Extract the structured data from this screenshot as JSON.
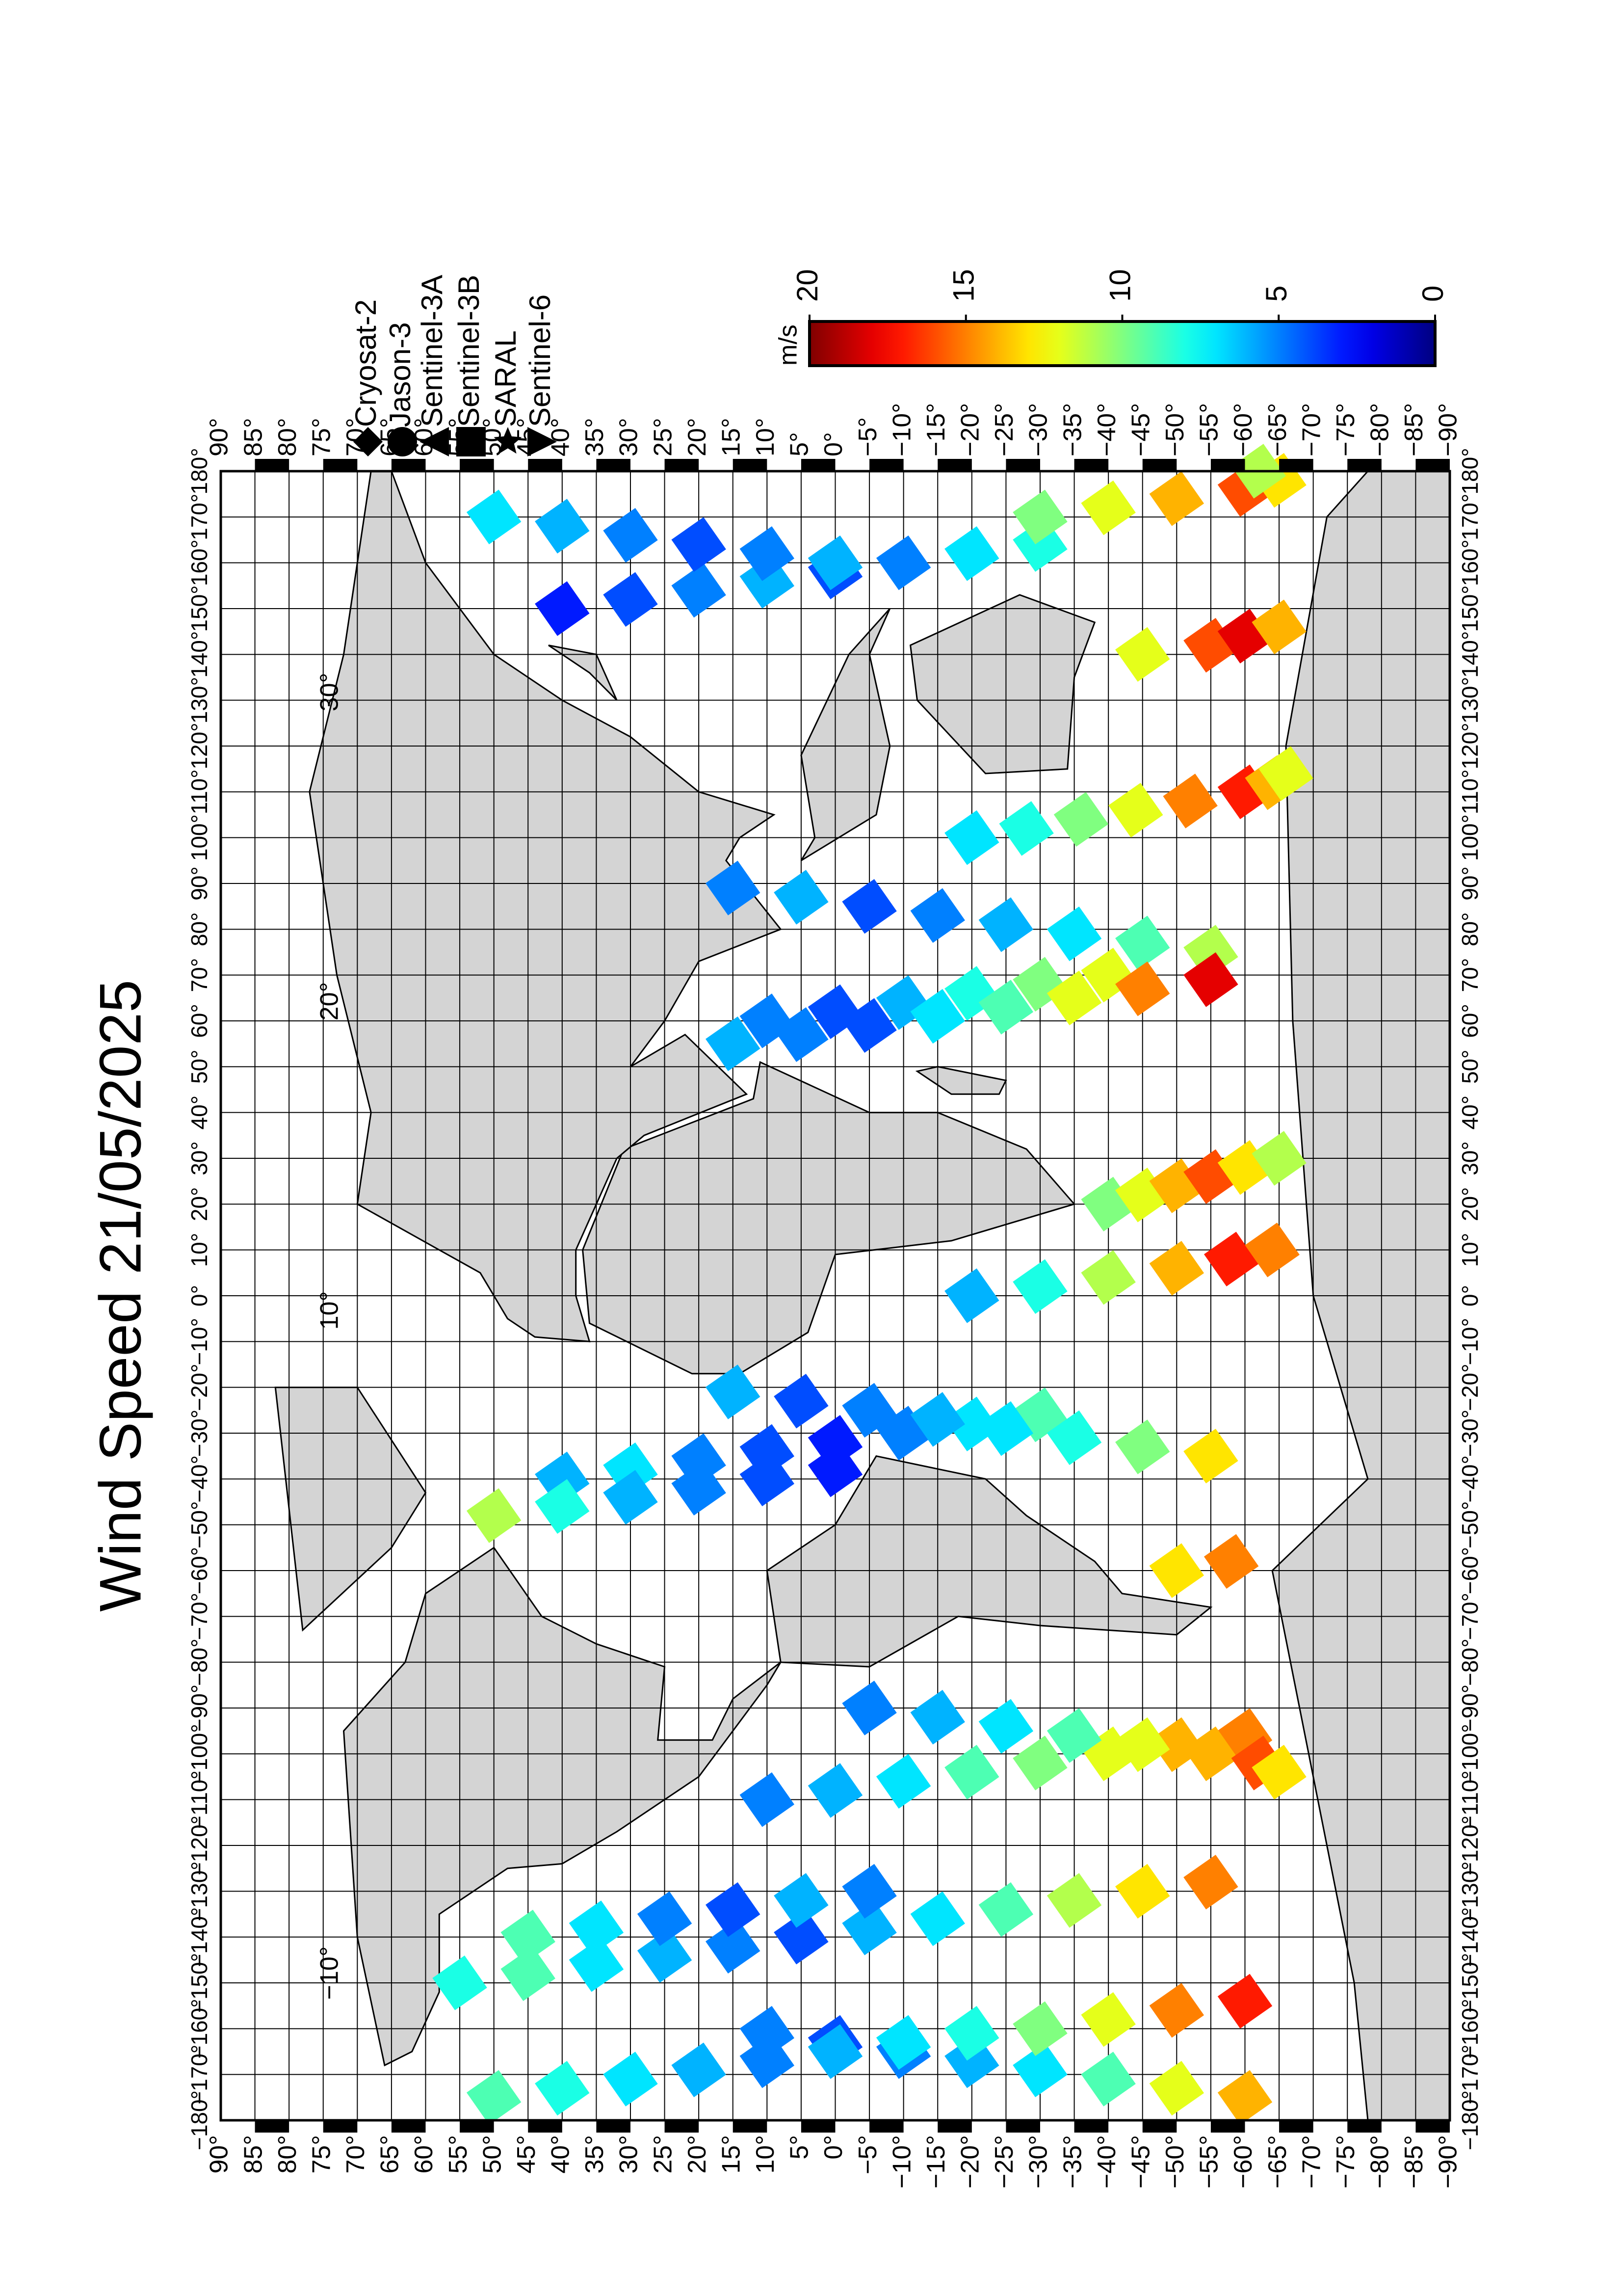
{
  "chart_data": {
    "type": "map",
    "title": "Wind Speed 21/05/2025",
    "xlim": [
      -180,
      180
    ],
    "ylim": [
      -90,
      90
    ],
    "grid": true,
    "xticks": [
      {
        "value": -180,
        "label": "−180°"
      },
      {
        "value": -170,
        "label": "−170°"
      },
      {
        "value": -160,
        "label": "−160°"
      },
      {
        "value": -150,
        "label": "−150°"
      },
      {
        "value": -140,
        "label": "−140°"
      },
      {
        "value": -130,
        "label": "−130°"
      },
      {
        "value": -120,
        "label": "−120°"
      },
      {
        "value": -110,
        "label": "−110°"
      },
      {
        "value": -100,
        "label": "−100°"
      },
      {
        "value": -90,
        "label": "−90°"
      },
      {
        "value": -80,
        "label": "−80°"
      },
      {
        "value": -70,
        "label": "−70°"
      },
      {
        "value": -60,
        "label": "−60°"
      },
      {
        "value": -50,
        "label": "−50°"
      },
      {
        "value": -40,
        "label": "−40°"
      },
      {
        "value": -30,
        "label": "−30°"
      },
      {
        "value": -20,
        "label": "−20°"
      },
      {
        "value": -10,
        "label": "−10°"
      },
      {
        "value": 0,
        "label": "0°"
      },
      {
        "value": 10,
        "label": "10°"
      },
      {
        "value": 20,
        "label": "20°"
      },
      {
        "value": 30,
        "label": "30°"
      },
      {
        "value": 40,
        "label": "40°"
      },
      {
        "value": 50,
        "label": "50°"
      },
      {
        "value": 60,
        "label": "60°"
      },
      {
        "value": 70,
        "label": "70°"
      },
      {
        "value": 80,
        "label": "80°"
      },
      {
        "value": 90,
        "label": "90°"
      },
      {
        "value": 100,
        "label": "100°"
      },
      {
        "value": 110,
        "label": "110°"
      },
      {
        "value": 120,
        "label": "120°"
      },
      {
        "value": 130,
        "label": "130°"
      },
      {
        "value": 140,
        "label": "140°"
      },
      {
        "value": 150,
        "label": "150°"
      },
      {
        "value": 160,
        "label": "160°"
      },
      {
        "value": 170,
        "label": "170°"
      },
      {
        "value": 180,
        "label": "180°"
      }
    ],
    "yticks": [
      {
        "value": -90,
        "label": "−90°"
      },
      {
        "value": -85,
        "label": "−85°"
      },
      {
        "value": -80,
        "label": "−80°"
      },
      {
        "value": -75,
        "label": "−75°"
      },
      {
        "value": -70,
        "label": "−70°"
      },
      {
        "value": -65,
        "label": "−65°"
      },
      {
        "value": -60,
        "label": "−60°"
      },
      {
        "value": -55,
        "label": "−55°"
      },
      {
        "value": -50,
        "label": "−50°"
      },
      {
        "value": -45,
        "label": "−45°"
      },
      {
        "value": -40,
        "label": "−40°"
      },
      {
        "value": -35,
        "label": "−35°"
      },
      {
        "value": -30,
        "label": "−30°"
      },
      {
        "value": -25,
        "label": "−25°"
      },
      {
        "value": -20,
        "label": "−20°"
      },
      {
        "value": -15,
        "label": "−15°"
      },
      {
        "value": -10,
        "label": "−10°"
      },
      {
        "value": -5,
        "label": "−5°"
      },
      {
        "value": 0,
        "label": "0°"
      },
      {
        "value": 5,
        "label": "5°"
      },
      {
        "value": 10,
        "label": "10°"
      },
      {
        "value": 15,
        "label": "15°"
      },
      {
        "value": 20,
        "label": "20°"
      },
      {
        "value": 25,
        "label": "25°"
      },
      {
        "value": 30,
        "label": "30°"
      },
      {
        "value": 35,
        "label": "35°"
      },
      {
        "value": 40,
        "label": "40°"
      },
      {
        "value": 45,
        "label": "45°"
      },
      {
        "value": 50,
        "label": "50°"
      },
      {
        "value": 55,
        "label": "55°"
      },
      {
        "value": 60,
        "label": "60°"
      },
      {
        "value": 65,
        "label": "65°"
      },
      {
        "value": 70,
        "label": "70°"
      },
      {
        "value": 75,
        "label": "75°"
      },
      {
        "value": 80,
        "label": "80°"
      },
      {
        "value": 85,
        "label": "85°"
      },
      {
        "value": 90,
        "label": "90°"
      }
    ],
    "annotations": [
      "−10°",
      "10°",
      "20°",
      "30°"
    ],
    "colorbar": {
      "label": "m/s",
      "lim": [
        0,
        20
      ],
      "ticks": [
        0,
        5,
        10,
        15,
        20
      ]
    },
    "series": [
      {
        "name": "Cryosat-2",
        "marker": "diamond",
        "lon": [
          -150,
          -148,
          -146,
          -144,
          -142,
          -140,
          -138,
          -136,
          -134,
          -132,
          -130,
          -128,
          20,
          22,
          24,
          26,
          28,
          30,
          60,
          62,
          64,
          66,
          68,
          70
        ],
        "lat": [
          55,
          45,
          35,
          25,
          15,
          5,
          -5,
          -15,
          -25,
          -35,
          -45,
          -55,
          -40,
          -45,
          -50,
          -55,
          -60,
          -65,
          10,
          0,
          -10,
          -20,
          -30,
          -40
        ],
        "values": [
          8,
          9,
          7,
          6,
          5,
          4,
          6,
          7,
          9,
          11,
          13,
          15,
          10,
          12,
          14,
          16,
          13,
          11,
          5,
          4,
          6,
          8,
          10,
          12
        ]
      },
      {
        "name": "Jason-3",
        "marker": "circle",
        "lon": [
          -40,
          -38,
          -36,
          -34,
          -32,
          -30,
          -28,
          -26,
          150,
          152,
          154,
          156,
          158,
          160,
          162,
          164,
          -110,
          -108,
          -106,
          -104,
          -102,
          -100,
          -98,
          -96
        ],
        "lat": [
          40,
          30,
          20,
          10,
          0,
          -10,
          -20,
          -30,
          40,
          30,
          20,
          10,
          0,
          -10,
          -20,
          -30,
          10,
          0,
          -10,
          -20,
          -30,
          -40,
          -50,
          -60
        ],
        "values": [
          6,
          7,
          5,
          4,
          3,
          5,
          7,
          9,
          3,
          4,
          5,
          6,
          4,
          5,
          7,
          8,
          5,
          6,
          7,
          9,
          10,
          12,
          14,
          15
        ]
      },
      {
        "name": "Sentinel-3A",
        "marker": "triangle-up",
        "lon": [
          -175,
          -173,
          -171,
          -169,
          -167,
          -165,
          -163,
          -161,
          75,
          77,
          79,
          81,
          83,
          85,
          87,
          89,
          -35,
          -33,
          -31,
          -29,
          -27,
          -25,
          -23,
          -21
        ],
        "lat": [
          -60,
          -50,
          -40,
          -30,
          -20,
          -10,
          0,
          10,
          -55,
          -45,
          -35,
          -25,
          -15,
          -5,
          5,
          15,
          -55,
          -45,
          -35,
          -25,
          -15,
          -5,
          5,
          15
        ],
        "values": [
          14,
          12,
          9,
          7,
          6,
          5,
          4,
          5,
          11,
          9,
          7,
          6,
          5,
          4,
          6,
          5,
          13,
          10,
          8,
          7,
          6,
          5,
          4,
          6
        ]
      },
      {
        "name": "Sentinel-3B",
        "marker": "square",
        "lon": [
          100,
          102,
          104,
          106,
          108,
          110,
          112,
          114,
          -175,
          -173,
          -171,
          -169,
          -167,
          -165,
          -163,
          -161,
          170,
          172,
          174,
          176,
          178,
          180,
          -60,
          -58
        ],
        "lat": [
          -20,
          -28,
          -36,
          -44,
          -52,
          -60,
          -64,
          -66,
          50,
          40,
          30,
          20,
          10,
          0,
          -10,
          -20,
          -30,
          -40,
          -50,
          -60,
          -65,
          -62,
          -50,
          -58
        ],
        "values": [
          7,
          8,
          10,
          12,
          15,
          17,
          14,
          12,
          9,
          8,
          7,
          6,
          5,
          6,
          7,
          8,
          10,
          12,
          14,
          16,
          13,
          11,
          13,
          15
        ]
      },
      {
        "name": "SARAL",
        "marker": "star",
        "lon": [
          -140,
          -138,
          -136,
          -134,
          -132,
          -130,
          55,
          57,
          59,
          61,
          63,
          65,
          67,
          69,
          -48,
          -46,
          -44,
          -42,
          -40,
          -38,
          140,
          142,
          144,
          146
        ],
        "lat": [
          45,
          35,
          25,
          15,
          5,
          -5,
          15,
          5,
          -5,
          -15,
          -25,
          -35,
          -45,
          -55,
          50,
          40,
          30,
          20,
          10,
          0,
          -45,
          -55,
          -60,
          -65
        ],
        "values": [
          9,
          7,
          5,
          4,
          6,
          5,
          6,
          5,
          4,
          7,
          9,
          12,
          15,
          18,
          11,
          8,
          6,
          5,
          4,
          3,
          12,
          16,
          18,
          14
        ]
      },
      {
        "name": "Sentinel-6",
        "marker": "triangle-down",
        "lon": [
          -90,
          -92,
          -94,
          -96,
          -98,
          -100,
          -102,
          -104,
          0,
          2,
          4,
          6,
          8,
          10,
          170,
          168,
          166,
          164,
          162,
          160,
          -160,
          -158,
          -156,
          -154
        ],
        "lat": [
          -5,
          -15,
          -25,
          -35,
          -45,
          -55,
          -62,
          -65,
          -20,
          -30,
          -40,
          -50,
          -58,
          -64,
          50,
          40,
          30,
          20,
          10,
          0,
          -30,
          -40,
          -50,
          -60
        ],
        "values": [
          5,
          6,
          7,
          9,
          12,
          14,
          16,
          13,
          6,
          8,
          11,
          14,
          17,
          15,
          7,
          6,
          5,
          4,
          5,
          6,
          10,
          12,
          15,
          17
        ]
      }
    ]
  }
}
